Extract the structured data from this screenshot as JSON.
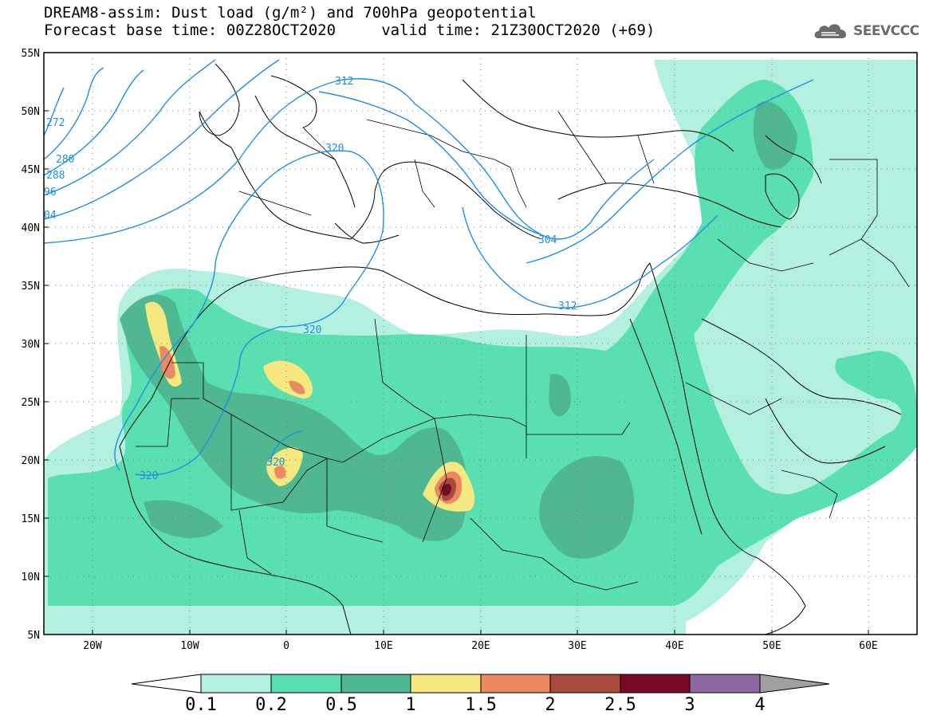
{
  "title": {
    "line1": "DREAM8-assim: Dust load (g/m²) and 700hPa geopotential",
    "line2": "Forecast base time: 00Z28OCT2020     valid time: 21Z30OCT2020 (+69)"
  },
  "logo": {
    "text": "SEEVCCC",
    "icon": "cloud-logo-icon"
  },
  "axes": {
    "lat_labels": [
      "55N",
      "50N",
      "45N",
      "40N",
      "35N",
      "30N",
      "25N",
      "20N",
      "15N",
      "10N",
      "5N"
    ],
    "lon_labels": [
      "20W",
      "10W",
      "0",
      "10E",
      "20E",
      "30E",
      "40E",
      "50E",
      "60E"
    ],
    "lat_range": [
      5,
      55
    ],
    "lon_range": [
      -25,
      65
    ],
    "grid": "dotted"
  },
  "geopotential_labels": [
    "272",
    "280",
    "288",
    "96",
    "04",
    "312",
    "320",
    "304",
    "312",
    "320",
    "320",
    "320"
  ],
  "colorbar": {
    "ticks": [
      "0.1",
      "0.2",
      "0.5",
      "1",
      "1.5",
      "2",
      "2.5",
      "3",
      "4"
    ],
    "colors": [
      "#ffffff",
      "#b3f0e0",
      "#5ae0b0",
      "#4fb890",
      "#f5e880",
      "#eb8a60",
      "#a84a3c",
      "#780a28",
      "#8a6aa0",
      "#a0a0a0"
    ]
  }
}
